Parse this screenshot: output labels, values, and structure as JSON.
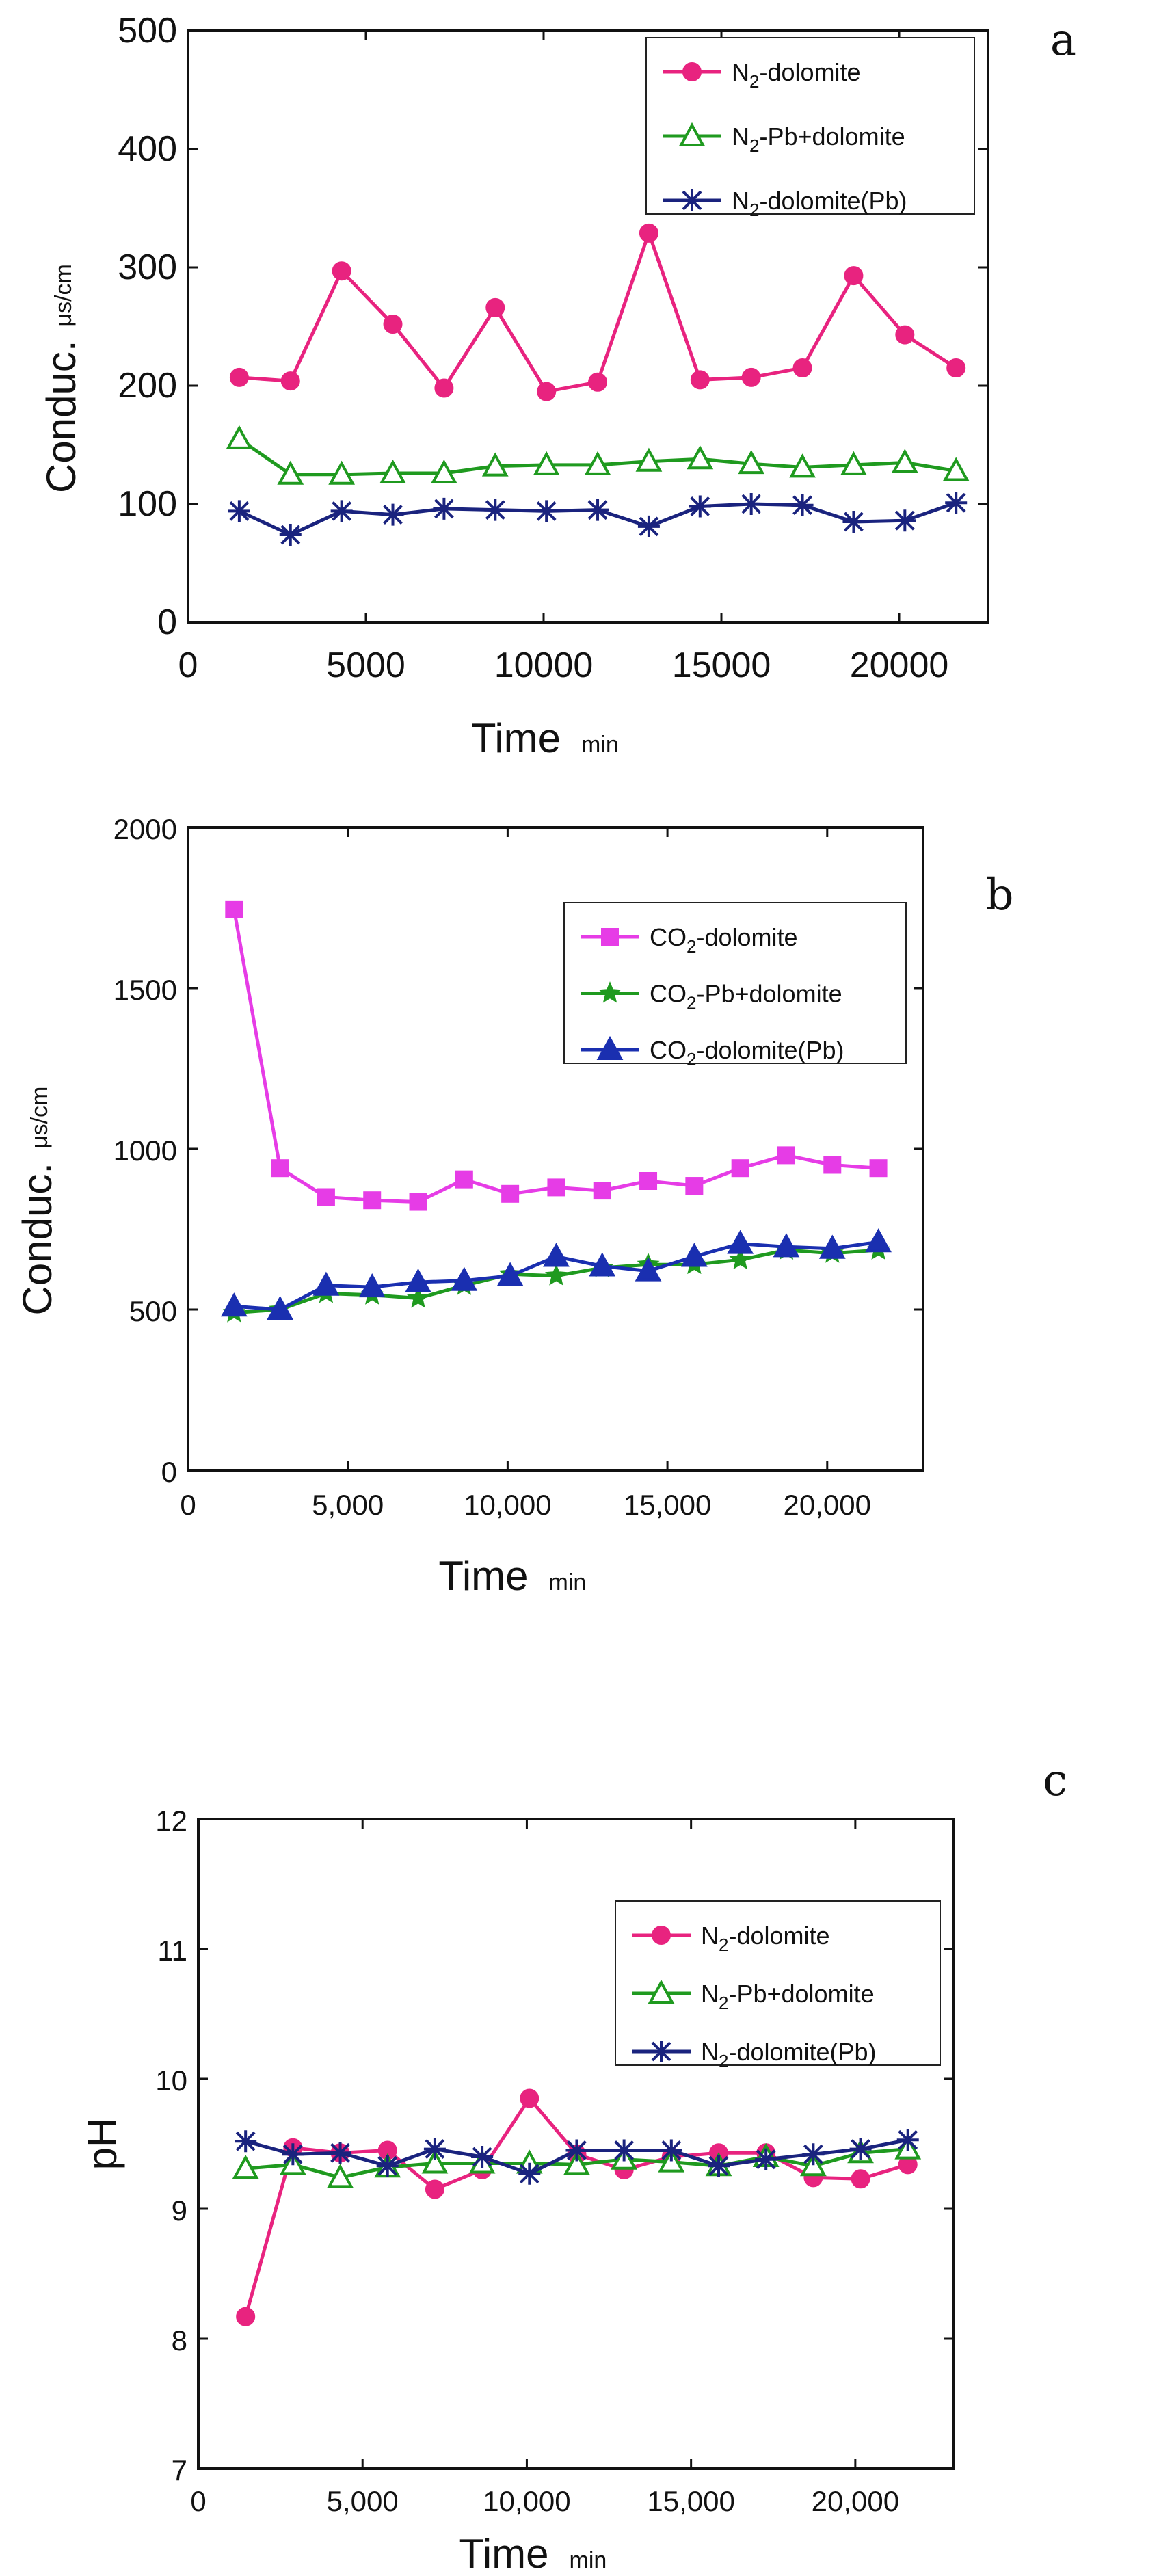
{
  "chart_data": [
    {
      "panel_label": "a",
      "type": "line",
      "x": [
        1440,
        2880,
        4320,
        5760,
        7200,
        8640,
        10080,
        11520,
        12960,
        14400,
        15840,
        17280,
        18720,
        20160,
        21600
      ],
      "xlim": [
        0,
        22500
      ],
      "xticks": [
        "0",
        "5000",
        "10000",
        "15000",
        "20000"
      ],
      "xtick_values": [
        0,
        5000,
        10000,
        15000,
        20000
      ],
      "ylim": [
        0,
        500
      ],
      "yticks": [
        "0",
        "100",
        "200",
        "300",
        "400",
        "500"
      ],
      "ytick_values": [
        0,
        100,
        200,
        300,
        400,
        500
      ],
      "xlabel": "Time",
      "xunit": "min",
      "ylabel": "Conduc.",
      "yunit": "μs/cm",
      "legend_position": "top-right",
      "series": [
        {
          "name_main": "N",
          "name_sub": "2",
          "name_rest": "-dolomite",
          "color": "#e8237f",
          "marker": "circle",
          "values": [
            207,
            204,
            297,
            252,
            198,
            266,
            195,
            203,
            329,
            205,
            207,
            215,
            293,
            243,
            215
          ]
        },
        {
          "name_main": "N",
          "name_sub": "2",
          "name_rest": "-Pb+dolomite",
          "color": "#1f9a1f",
          "marker": "triangle-open",
          "values": [
            155,
            125,
            125,
            126,
            126,
            132,
            133,
            133,
            136,
            138,
            134,
            131,
            133,
            135,
            128
          ]
        },
        {
          "name_main": "N",
          "name_sub": "2",
          "name_rest": "-dolomite(Pb)",
          "color": "#1a237e",
          "marker": "star",
          "values": [
            94,
            74,
            94,
            91,
            96,
            95,
            94,
            95,
            81,
            98,
            100,
            99,
            85,
            86,
            101
          ]
        }
      ]
    },
    {
      "panel_label": "b",
      "type": "line",
      "x": [
        1440,
        2880,
        4320,
        5760,
        7200,
        8640,
        10080,
        11520,
        12960,
        14400,
        15840,
        17280,
        18720,
        20160,
        21600
      ],
      "xlim": [
        0,
        23000
      ],
      "xticks": [
        "0",
        "5,000",
        "10,000",
        "15,000",
        "20,000"
      ],
      "xtick_values": [
        0,
        5000,
        10000,
        15000,
        20000
      ],
      "ylim": [
        0,
        2000
      ],
      "yticks": [
        "0",
        "500",
        "1000",
        "1500",
        "2000"
      ],
      "ytick_values": [
        0,
        500,
        1000,
        1500,
        2000
      ],
      "xlabel": "Time",
      "xunit": "min",
      "ylabel": "Conduc.",
      "yunit": "μs/cm",
      "legend_position": "top-right",
      "series": [
        {
          "name_main": "CO",
          "name_sub": "2",
          "name_rest": "-dolomite",
          "color": "#e63ce6",
          "marker": "square",
          "values": [
            1745,
            940,
            850,
            840,
            835,
            905,
            860,
            880,
            870,
            900,
            885,
            940,
            980,
            950,
            940
          ]
        },
        {
          "name_main": "CO",
          "name_sub": "2",
          "name_rest": "-Pb+dolomite",
          "color": "#1f9a1f",
          "marker": "star5",
          "values": [
            490,
            500,
            550,
            545,
            535,
            575,
            610,
            605,
            630,
            640,
            640,
            655,
            685,
            675,
            685
          ]
        },
        {
          "name_main": "CO",
          "name_sub": "2",
          "name_rest": "-dolomite(Pb)",
          "color": "#1a2fb0",
          "marker": "triangle",
          "values": [
            510,
            500,
            575,
            570,
            585,
            590,
            605,
            665,
            635,
            620,
            665,
            705,
            695,
            690,
            710
          ]
        }
      ]
    },
    {
      "panel_label": "c",
      "type": "line",
      "x": [
        1440,
        2880,
        4320,
        5760,
        7200,
        8640,
        10080,
        11520,
        12960,
        14400,
        15840,
        17280,
        18720,
        20160,
        21600
      ],
      "xlim": [
        0,
        23000
      ],
      "xticks": [
        "0",
        "5,000",
        "10,000",
        "15,000",
        "20,000"
      ],
      "xtick_values": [
        0,
        5000,
        10000,
        15000,
        20000
      ],
      "ylim": [
        7,
        12
      ],
      "yticks": [
        "7",
        "8",
        "9",
        "10",
        "11",
        "12"
      ],
      "ytick_values": [
        7,
        8,
        9,
        10,
        11,
        12
      ],
      "xlabel": "Time",
      "xunit": "min",
      "ylabel": "pH",
      "yunit": "",
      "legend_position": "top-right",
      "series": [
        {
          "name_main": "N",
          "name_sub": "2",
          "name_rest": "-dolomite",
          "color": "#e8237f",
          "marker": "circle",
          "values": [
            8.17,
            9.47,
            9.43,
            9.45,
            9.15,
            9.3,
            9.85,
            9.42,
            9.3,
            9.4,
            9.43,
            9.43,
            9.24,
            9.23,
            9.34
          ]
        },
        {
          "name_main": "N",
          "name_sub": "2",
          "name_rest": "-Pb+dolomite",
          "color": "#1f9a1f",
          "marker": "triangle-open",
          "values": [
            9.31,
            9.34,
            9.24,
            9.32,
            9.35,
            9.35,
            9.35,
            9.34,
            9.38,
            9.36,
            9.33,
            9.4,
            9.33,
            9.43,
            9.46
          ]
        },
        {
          "name_main": "N",
          "name_sub": "2",
          "name_rest": "-dolomite(Pb)",
          "color": "#1a237e",
          "marker": "star",
          "values": [
            9.52,
            9.42,
            9.43,
            9.33,
            9.46,
            9.4,
            9.27,
            9.45,
            9.45,
            9.45,
            9.33,
            9.38,
            9.42,
            9.46,
            9.53
          ]
        }
      ]
    }
  ]
}
